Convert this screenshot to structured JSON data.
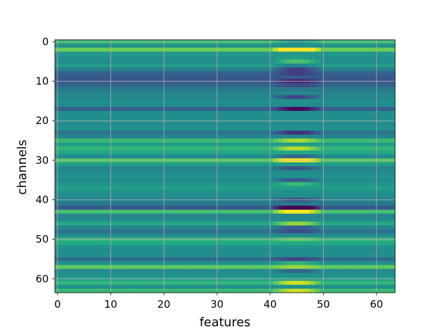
{
  "chart_data": {
    "type": "heatmap",
    "title": "",
    "xlabel": "features",
    "ylabel": "channels",
    "x_range": [
      0,
      63
    ],
    "y_range": [
      0,
      63
    ],
    "y_inverted": true,
    "xticks": [
      0,
      10,
      20,
      30,
      40,
      50,
      60
    ],
    "yticks": [
      0,
      10,
      20,
      30,
      40,
      50,
      60
    ],
    "grid": true,
    "colormap": "viridis",
    "value_range": [
      -1,
      1
    ],
    "hot_feature_band": [
      40,
      50
    ],
    "row_levels": [
      0.35,
      0.0,
      0.55,
      0.05,
      0.0,
      -0.05,
      0.1,
      -0.15,
      -0.35,
      -0.45,
      -0.45,
      -0.35,
      -0.2,
      -0.1,
      -0.1,
      0.0,
      -0.05,
      -0.4,
      0.0,
      -0.05,
      0.0,
      -0.05,
      0.0,
      -0.25,
      -0.1,
      0.35,
      0.1,
      0.3,
      0.2,
      -0.05,
      0.45,
      0.1,
      -0.1,
      -0.05,
      0.0,
      -0.05,
      0.05,
      0.1,
      0.0,
      -0.05,
      -0.1,
      -0.2,
      -0.45,
      0.4,
      -0.1,
      -0.05,
      0.2,
      -0.1,
      -0.25,
      -0.05,
      0.3,
      0.2,
      0.0,
      -0.05,
      0.0,
      -0.3,
      0.0,
      0.5,
      -0.05,
      0.0,
      0.1,
      0.3,
      0.0,
      0.35
    ],
    "band_deltas": [
      -0.3,
      0.0,
      0.8,
      0.0,
      0.1,
      0.5,
      -0.2,
      -0.5,
      -0.3,
      0.0,
      -0.4,
      -0.2,
      0.0,
      0.0,
      -0.5,
      0.0,
      0.0,
      -0.6,
      0.0,
      0.0,
      0.0,
      0.0,
      0.0,
      -0.5,
      0.0,
      0.4,
      0.0,
      0.5,
      0.0,
      -0.3,
      0.8,
      0.0,
      -0.4,
      0.0,
      0.0,
      -0.4,
      0.3,
      0.0,
      0.0,
      0.0,
      -0.4,
      0.0,
      -0.8,
      0.7,
      0.0,
      0.0,
      0.5,
      -0.3,
      -0.3,
      0.0,
      0.2,
      0.0,
      0.0,
      0.0,
      0.0,
      -0.3,
      0.3,
      0.2,
      -0.3,
      0.0,
      0.0,
      0.6,
      0.0,
      0.5
    ]
  }
}
